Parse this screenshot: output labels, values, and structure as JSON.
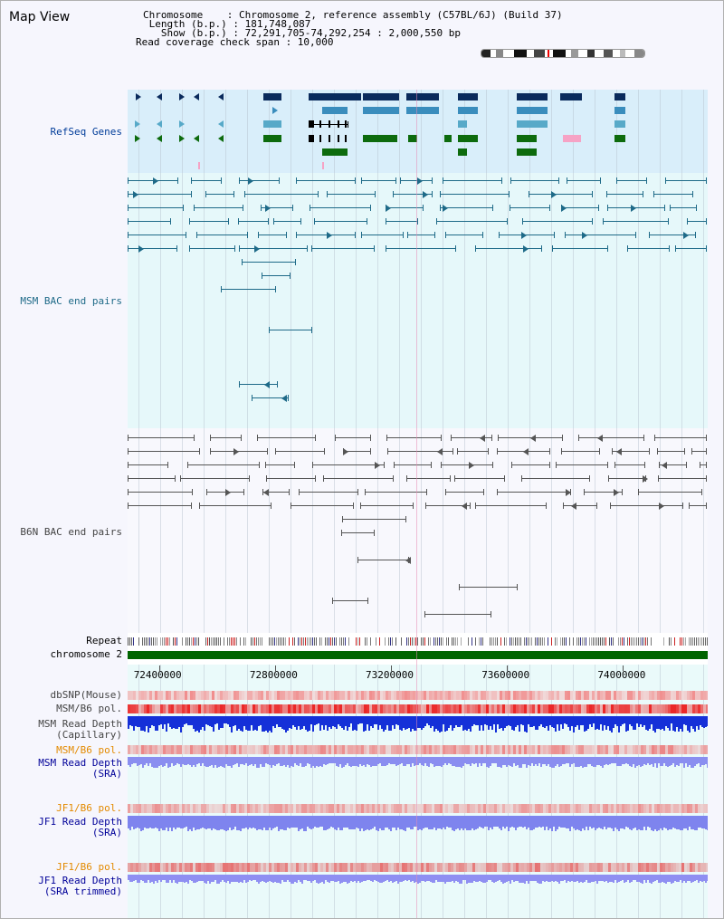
{
  "title": "Map View",
  "header": {
    "chromosome": "Chromosome    : Chromosome 2, reference assembly (C57BL/6J) (Build 37)",
    "length": " Length (b.p.) : 181,748,087",
    "show": "   Show (b.p.) : 72,291,705-74,292,254 : 2,000,550 bp",
    "coverage": "Read coverage check span : 10,000"
  },
  "tracks": {
    "refseq": "RefSeq Genes",
    "msm_bac": "MSM BAC end pairs",
    "b6n_bac": "B6N BAC end pairs",
    "repeat": "Repeat",
    "chromosome": "chromosome 2",
    "dbsnp": "dbSNP(Mouse)",
    "msm_pol": "MSM/B6 pol.",
    "msm_depth": "MSM Read Depth\n(Capillary)",
    "msm_pol2": "MSM/B6 pol.",
    "msm_depth_sra": "MSM Read Depth\n(SRA)",
    "jf1_pol": "JF1/B6 pol.",
    "jf1_depth": "JF1 Read Depth\n(SRA)",
    "jf1_pol2": "JF1/B6 pol.",
    "jf1_depth_trim": "JF1 Read Depth\n(SRA trimmed)"
  },
  "axis": {
    "ticks": [
      "72400000",
      "72800000",
      "73200000",
      "73600000",
      "74000000"
    ],
    "tick_values": [
      72400000,
      72800000,
      73200000,
      73600000,
      74000000
    ],
    "start": 72291705,
    "end": 74292254
  },
  "colors": {
    "refseq_bg": "#d9eefa",
    "msm_bg": "#e6f8fa",
    "b6n_bg": "#f8f8fd",
    "msm_pair": "#1e6a88",
    "b6n_pair": "#555555",
    "chrom_bar": "#006400",
    "gene_dark": "#0a2a5c",
    "gene_mid": "#3a8dbd",
    "gene_light": "#57a9c8",
    "gene_green": "#0d6b0d",
    "gene_pink": "#f6a3c5",
    "msm_label": "#003c99",
    "orange_label": "#e38a00",
    "sra_label": "#000099"
  }
}
